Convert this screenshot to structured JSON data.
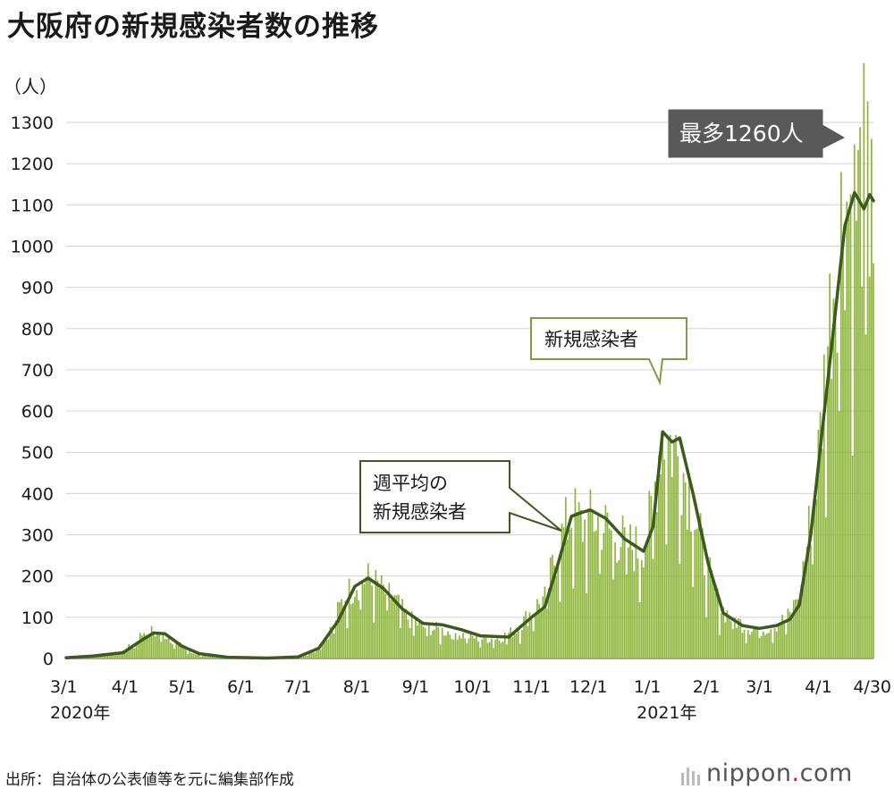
{
  "title": "大阪府の新規感染者数の推移",
  "source": "出所：自治体の公表値等を元に編集部作成",
  "brand": {
    "name": "nippon",
    "dot": ".",
    "suffix": "com"
  },
  "colors": {
    "bars": "#8cb53a",
    "line": "#3d5a1e",
    "grid": "#d3d3d3",
    "peak_box": "#595959",
    "callout_border": "#7a9f3c"
  },
  "chart_data": {
    "type": "bar",
    "title": "大阪府の新規感染者数の推移",
    "ylabel": "（人）",
    "ylim": [
      0,
      1300
    ],
    "yticks": [
      0,
      100,
      200,
      300,
      400,
      500,
      600,
      700,
      800,
      900,
      1000,
      1100,
      1200,
      1300
    ],
    "x_range": [
      "2020-03-01",
      "2021-04-30"
    ],
    "xticks": [
      {
        "date": "2020-03-01",
        "label": "3/1"
      },
      {
        "date": "2020-04-01",
        "label": "4/1"
      },
      {
        "date": "2020-05-01",
        "label": "5/1"
      },
      {
        "date": "2020-06-01",
        "label": "6/1"
      },
      {
        "date": "2020-07-01",
        "label": "7/1"
      },
      {
        "date": "2020-08-01",
        "label": "8/1"
      },
      {
        "date": "2020-09-01",
        "label": "9/1"
      },
      {
        "date": "2020-10-01",
        "label": "10/1"
      },
      {
        "date": "2020-11-01",
        "label": "11/1"
      },
      {
        "date": "2020-12-01",
        "label": "12/1"
      },
      {
        "date": "2021-01-01",
        "label": "1/1"
      },
      {
        "date": "2021-02-01",
        "label": "2/1"
      },
      {
        "date": "2021-03-01",
        "label": "3/1"
      },
      {
        "date": "2021-04-01",
        "label": "4/1"
      },
      {
        "date": "2021-04-30",
        "label": "4/30"
      }
    ],
    "year_labels": [
      {
        "date": "2020-03-01",
        "label": "2020年"
      },
      {
        "date": "2021-01-01",
        "label": "2021年"
      }
    ],
    "series": [
      {
        "name": "新規感染者",
        "kind": "bar",
        "anchors": [
          [
            "2020-03-01",
            1
          ],
          [
            "2020-03-10",
            5
          ],
          [
            "2020-03-20",
            8
          ],
          [
            "2020-03-28",
            15
          ],
          [
            "2020-04-01",
            20
          ],
          [
            "2020-04-08",
            50
          ],
          [
            "2020-04-12",
            75
          ],
          [
            "2020-04-16",
            65
          ],
          [
            "2020-04-22",
            60
          ],
          [
            "2020-04-28",
            40
          ],
          [
            "2020-05-05",
            15
          ],
          [
            "2020-05-15",
            5
          ],
          [
            "2020-05-25",
            2
          ],
          [
            "2020-06-01",
            1
          ],
          [
            "2020-06-20",
            1
          ],
          [
            "2020-07-01",
            5
          ],
          [
            "2020-07-10",
            20
          ],
          [
            "2020-07-18",
            70
          ],
          [
            "2020-07-25",
            150
          ],
          [
            "2020-08-01",
            190
          ],
          [
            "2020-08-06",
            200
          ],
          [
            "2020-08-12",
            180
          ],
          [
            "2020-08-20",
            150
          ],
          [
            "2020-08-28",
            100
          ],
          [
            "2020-09-05",
            80
          ],
          [
            "2020-09-15",
            70
          ],
          [
            "2020-09-25",
            60
          ],
          [
            "2020-10-05",
            50
          ],
          [
            "2020-10-15",
            50
          ],
          [
            "2020-10-25",
            75
          ],
          [
            "2020-11-01",
            120
          ],
          [
            "2020-11-08",
            150
          ],
          [
            "2020-11-15",
            280
          ],
          [
            "2020-11-22",
            360
          ],
          [
            "2020-11-28",
            330
          ],
          [
            "2020-12-05",
            350
          ],
          [
            "2020-12-12",
            320
          ],
          [
            "2020-12-20",
            290
          ],
          [
            "2020-12-28",
            270
          ],
          [
            "2021-01-03",
            350
          ],
          [
            "2021-01-08",
            560
          ],
          [
            "2021-01-13",
            540
          ],
          [
            "2021-01-18",
            500
          ],
          [
            "2021-01-24",
            400
          ],
          [
            "2021-02-01",
            230
          ],
          [
            "2021-02-08",
            130
          ],
          [
            "2021-02-15",
            100
          ],
          [
            "2021-02-22",
            80
          ],
          [
            "2021-03-01",
            70
          ],
          [
            "2021-03-10",
            85
          ],
          [
            "2021-03-18",
            110
          ],
          [
            "2021-03-25",
            250
          ],
          [
            "2021-04-01",
            500
          ],
          [
            "2021-04-06",
            800
          ],
          [
            "2021-04-10",
            1000
          ],
          [
            "2021-04-15",
            1150
          ],
          [
            "2021-04-20",
            1120
          ],
          [
            "2021-04-25",
            1200
          ],
          [
            "2021-04-30",
            1050
          ]
        ]
      },
      {
        "name": "週平均の新規感染者",
        "kind": "line",
        "points": [
          [
            "2020-03-01",
            2
          ],
          [
            "2020-03-15",
            6
          ],
          [
            "2020-03-31",
            14
          ],
          [
            "2020-04-10",
            45
          ],
          [
            "2020-04-16",
            62
          ],
          [
            "2020-04-22",
            60
          ],
          [
            "2020-05-01",
            30
          ],
          [
            "2020-05-10",
            12
          ],
          [
            "2020-05-25",
            3
          ],
          [
            "2020-06-15",
            1
          ],
          [
            "2020-07-01",
            4
          ],
          [
            "2020-07-12",
            25
          ],
          [
            "2020-07-22",
            90
          ],
          [
            "2020-07-31",
            175
          ],
          [
            "2020-08-07",
            195
          ],
          [
            "2020-08-15",
            170
          ],
          [
            "2020-08-25",
            120
          ],
          [
            "2020-09-05",
            85
          ],
          [
            "2020-09-15",
            82
          ],
          [
            "2020-09-25",
            70
          ],
          [
            "2020-10-05",
            55
          ],
          [
            "2020-10-20",
            52
          ],
          [
            "2020-11-01",
            100
          ],
          [
            "2020-11-08",
            125
          ],
          [
            "2020-11-15",
            230
          ],
          [
            "2020-11-22",
            345
          ],
          [
            "2020-11-28",
            355
          ],
          [
            "2020-12-02",
            360
          ],
          [
            "2020-12-10",
            340
          ],
          [
            "2020-12-20",
            290
          ],
          [
            "2020-12-30",
            260
          ],
          [
            "2021-01-04",
            320
          ],
          [
            "2021-01-09",
            550
          ],
          [
            "2021-01-14",
            525
          ],
          [
            "2021-01-18",
            535
          ],
          [
            "2021-01-25",
            400
          ],
          [
            "2021-02-02",
            230
          ],
          [
            "2021-02-10",
            110
          ],
          [
            "2021-02-20",
            80
          ],
          [
            "2021-03-01",
            73
          ],
          [
            "2021-03-10",
            80
          ],
          [
            "2021-03-17",
            95
          ],
          [
            "2021-03-22",
            130
          ],
          [
            "2021-03-28",
            300
          ],
          [
            "2021-04-03",
            550
          ],
          [
            "2021-04-09",
            800
          ],
          [
            "2021-04-15",
            1050
          ],
          [
            "2021-04-20",
            1130
          ],
          [
            "2021-04-25",
            1090
          ],
          [
            "2021-04-28",
            1125
          ],
          [
            "2021-04-30",
            1110
          ]
        ]
      }
    ],
    "annotations": [
      {
        "text": "最多1260人",
        "date": "2021-04-29",
        "value": 1260
      },
      {
        "text": "新規感染者",
        "date": "2021-01-07",
        "value": 650
      },
      {
        "text": "週平均の新規感染者",
        "lines": [
          "週平均の",
          "新規感染者"
        ],
        "date": "2020-11-15",
        "value": 300
      }
    ],
    "grid": true,
    "legend": "none"
  }
}
